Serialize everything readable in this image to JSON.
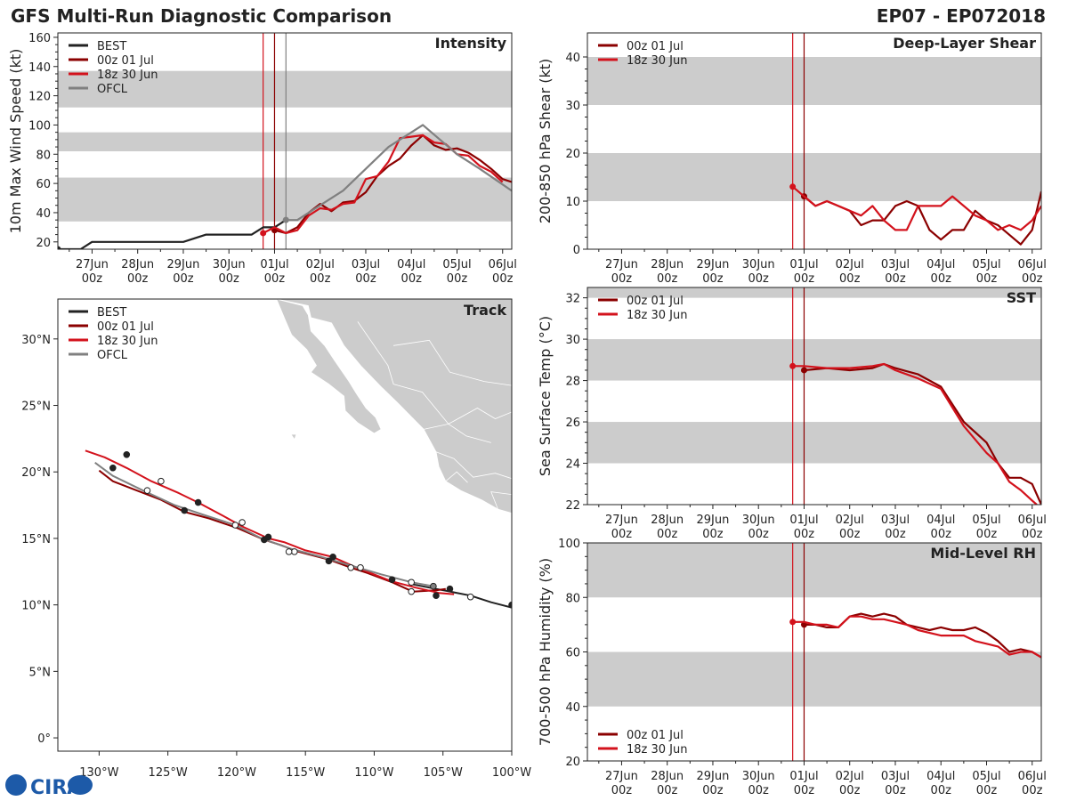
{
  "header": {
    "title": "GFS Multi-Run Diagnostic Comparison",
    "storm_id": "EP07 - EP072018"
  },
  "logo_text": "CIRA",
  "colors": {
    "best": "#222222",
    "run1": "#8b0000",
    "run2": "#d3121c",
    "ofcl": "#808080",
    "band": "#cccccc",
    "land": "#cccccc",
    "border": "#ffffff"
  },
  "legend": {
    "best": "BEST",
    "run1": "00z 01 Jul",
    "run2": "18z 30 Jun",
    "ofcl": "OFCL"
  },
  "time_axis": {
    "date_labels": [
      "27Jun",
      "28Jun",
      "29Jun",
      "30Jun",
      "01Jul",
      "02Jul",
      "03Jul",
      "04Jul",
      "05Jul",
      "06Jul"
    ],
    "hour_label": "00z",
    "days": [
      0,
      1,
      2,
      3,
      4,
      5,
      6,
      7,
      8,
      9
    ],
    "xlim": [
      -0.75,
      9.2
    ]
  },
  "chart_data": [
    {
      "id": "intensity",
      "type": "line",
      "title": "Intensity",
      "ylabel": "10m Max Wind Speed (kt)",
      "ylim": [
        15,
        163
      ],
      "yticks": [
        20,
        40,
        60,
        80,
        100,
        120,
        140,
        160
      ],
      "bands": [
        [
          34,
          64
        ],
        [
          82,
          95
        ],
        [
          112,
          137
        ]
      ],
      "vlines": [
        {
          "series": "run2",
          "day": 3.75
        },
        {
          "series": "run1",
          "day": 4.0
        },
        {
          "series": "ofcl",
          "day": 4.25
        }
      ],
      "series": [
        {
          "key": "best",
          "name": "BEST",
          "t": [
            -0.75,
            -0.25,
            0,
            0.5,
            1,
            1.5,
            2,
            2.5,
            3,
            3.25,
            3.5,
            3.75,
            4.0,
            4.25
          ],
          "values": [
            15,
            15,
            20,
            20,
            20,
            20,
            20,
            25,
            25,
            25,
            25,
            30,
            30,
            35
          ]
        },
        {
          "key": "run1",
          "name": "00z 01 Jul",
          "t": [
            4.0,
            4.25,
            4.5,
            4.75,
            5.0,
            5.25,
            5.5,
            5.75,
            6.0,
            6.25,
            6.5,
            6.75,
            7.0,
            7.25,
            7.5,
            7.75,
            8.0,
            8.25,
            8.5,
            8.75,
            9.0,
            9.2
          ],
          "values": [
            28,
            26,
            30,
            40,
            46,
            41,
            47,
            48,
            54,
            65,
            72,
            77,
            86,
            93,
            86,
            83,
            84,
            81,
            76,
            70,
            63,
            61
          ]
        },
        {
          "key": "run2",
          "name": "18z 30 Jun",
          "t": [
            3.75,
            4.0,
            4.25,
            4.5,
            4.75,
            5.0,
            5.25,
            5.5,
            5.75,
            6.0,
            6.25,
            6.5,
            6.75,
            7.0,
            7.25,
            7.5,
            7.75,
            8.0,
            8.25,
            8.5,
            8.75,
            9.0
          ],
          "values": [
            26,
            30,
            26,
            28,
            38,
            43,
            42,
            46,
            47,
            63,
            65,
            75,
            91,
            92,
            93,
            88,
            87,
            80,
            79,
            72,
            68,
            61
          ]
        },
        {
          "key": "ofcl",
          "name": "OFCL",
          "t": [
            4.25,
            4.5,
            5.0,
            5.5,
            6.0,
            6.5,
            7.25,
            8.0,
            8.5,
            9.2
          ],
          "values": [
            35,
            35,
            45,
            55,
            70,
            85,
            100,
            80,
            70,
            55
          ]
        }
      ]
    },
    {
      "id": "shear",
      "type": "line",
      "title": "Deep-Layer Shear",
      "ylabel": "200-850 hPa Shear (kt)",
      "ylim": [
        0,
        45
      ],
      "yticks": [
        0,
        10,
        20,
        30,
        40
      ],
      "bands": [
        [
          10,
          20
        ],
        [
          30,
          40
        ]
      ],
      "vlines": [
        {
          "series": "run2",
          "day": 3.75
        },
        {
          "series": "run1",
          "day": 4.0
        }
      ],
      "series": [
        {
          "key": "run1",
          "name": "00z 01 Jul",
          "t": [
            4.0,
            4.25,
            4.5,
            4.75,
            5.0,
            5.25,
            5.5,
            5.75,
            6.0,
            6.25,
            6.5,
            6.75,
            7.0,
            7.25,
            7.5,
            7.75,
            8.0,
            8.25,
            8.5,
            8.75,
            9.0,
            9.2
          ],
          "values": [
            11,
            9,
            10,
            9,
            8,
            5,
            6,
            6,
            9,
            10,
            9,
            4,
            2,
            4,
            4,
            8,
            6,
            5,
            3,
            1,
            4,
            12
          ]
        },
        {
          "key": "run2",
          "name": "18z 30 Jun",
          "t": [
            3.75,
            4.0,
            4.25,
            4.5,
            4.75,
            5.0,
            5.25,
            5.5,
            5.75,
            6.0,
            6.25,
            6.5,
            6.75,
            7.0,
            7.25,
            7.5,
            7.75,
            8.0,
            8.25,
            8.5,
            8.75,
            9.0,
            9.2
          ],
          "values": [
            13,
            11,
            9,
            10,
            9,
            8,
            7,
            9,
            6,
            4,
            4,
            9,
            9,
            9,
            11,
            9,
            7,
            6,
            4,
            5,
            4,
            6,
            9
          ]
        }
      ]
    },
    {
      "id": "sst",
      "type": "line",
      "title": "SST",
      "ylabel": "Sea Surface Temp (°C)",
      "ylim": [
        22,
        32.5
      ],
      "yticks": [
        22,
        24,
        26,
        28,
        30,
        32
      ],
      "bands": [
        [
          24,
          26
        ],
        [
          28,
          30
        ],
        [
          32,
          33
        ]
      ],
      "vlines": [
        {
          "series": "run2",
          "day": 3.75
        },
        {
          "series": "run1",
          "day": 4.0
        }
      ],
      "series": [
        {
          "key": "run1",
          "name": "00z 01 Jul",
          "t": [
            4.0,
            4.5,
            5.0,
            5.5,
            5.75,
            6.0,
            6.5,
            7.0,
            7.5,
            8.0,
            8.25,
            8.5,
            8.75,
            9.0,
            9.2
          ],
          "values": [
            28.5,
            28.6,
            28.5,
            28.6,
            28.8,
            28.6,
            28.3,
            27.7,
            26.0,
            25.0,
            24.0,
            23.3,
            23.3,
            23.0,
            22.0
          ]
        },
        {
          "key": "run2",
          "name": "18z 30 Jun",
          "t": [
            3.75,
            4.0,
            4.5,
            5.0,
            5.5,
            5.75,
            6.0,
            6.5,
            7.0,
            7.5,
            8.0,
            8.25,
            8.5,
            8.75,
            9.0,
            9.1
          ],
          "values": [
            28.7,
            28.7,
            28.6,
            28.6,
            28.7,
            28.8,
            28.5,
            28.1,
            27.6,
            25.8,
            24.5,
            24.0,
            23.1,
            22.7,
            22.2,
            22.0
          ]
        }
      ]
    },
    {
      "id": "rh",
      "type": "line",
      "title": "Mid-Level RH",
      "ylabel": "700-500 hPa Humidity (%)",
      "ylim": [
        20,
        100
      ],
      "yticks": [
        20,
        40,
        60,
        80,
        100
      ],
      "bands": [
        [
          40,
          60
        ],
        [
          80,
          100
        ]
      ],
      "vlines": [
        {
          "series": "run2",
          "day": 3.75
        },
        {
          "series": "run1",
          "day": 4.0
        }
      ],
      "series": [
        {
          "key": "run1",
          "name": "00z 01 Jul",
          "t": [
            4.0,
            4.25,
            4.5,
            4.75,
            5.0,
            5.25,
            5.5,
            5.75,
            6.0,
            6.25,
            6.5,
            6.75,
            7.0,
            7.25,
            7.5,
            7.75,
            8.0,
            8.25,
            8.5,
            8.75,
            9.0,
            9.2
          ],
          "values": [
            70,
            70,
            69,
            69,
            73,
            74,
            73,
            74,
            73,
            70,
            69,
            68,
            69,
            68,
            68,
            69,
            67,
            64,
            60,
            61,
            60,
            58
          ]
        },
        {
          "key": "run2",
          "name": "18z 30 Jun",
          "t": [
            3.75,
            4.0,
            4.25,
            4.5,
            4.75,
            5.0,
            5.25,
            5.5,
            5.75,
            6.0,
            6.25,
            6.5,
            6.75,
            7.0,
            7.25,
            7.5,
            7.75,
            8.0,
            8.25,
            8.5,
            8.75,
            9.0,
            9.2
          ],
          "values": [
            71,
            71,
            70,
            70,
            69,
            73,
            73,
            72,
            72,
            71,
            70,
            68,
            67,
            66,
            66,
            66,
            64,
            63,
            62,
            59,
            60,
            60,
            58
          ]
        }
      ]
    },
    {
      "id": "track",
      "type": "line",
      "title": "Track",
      "xlim": [
        -133,
        -100
      ],
      "ylim": [
        -1,
        33
      ],
      "xticks": [
        -130,
        -125,
        -120,
        -115,
        -110,
        -105,
        -100
      ],
      "xtick_labels": [
        "130°W",
        "125°W",
        "120°W",
        "115°W",
        "110°W",
        "105°W",
        "100°W"
      ],
      "yticks": [
        0,
        5,
        10,
        15,
        20,
        25,
        30
      ],
      "ytick_labels": [
        "0°",
        "5°N",
        "10°N",
        "15°N",
        "20°N",
        "25°N",
        "30°N"
      ],
      "series": [
        {
          "key": "best",
          "name": "BEST",
          "lon": [
            -100.0,
            -101.5,
            -103,
            -104.5,
            -106,
            -107.5
          ],
          "lat": [
            9.8,
            10.2,
            10.7,
            11.0,
            11.3,
            11.6
          ]
        },
        {
          "key": "run1",
          "name": "00z 01 Jul",
          "lon": [
            -104.8,
            -105.5,
            -107.2,
            -108.7,
            -110.5,
            -111.7,
            -113.3,
            -115.5,
            -116.8,
            -118.0,
            -120.0,
            -122.0,
            -123.8,
            -125.5,
            -127.5,
            -129.0,
            -130.0
          ],
          "lat": [
            11.2,
            11.1,
            11.0,
            11.7,
            12.4,
            12.8,
            13.4,
            14.0,
            14.5,
            14.9,
            15.8,
            16.5,
            17.0,
            17.9,
            18.7,
            19.3,
            20.1
          ]
        },
        {
          "key": "run2",
          "name": "18z 30 Jun",
          "lon": [
            -104.2,
            -105.3,
            -107.0,
            -108.8,
            -110.5,
            -111.5,
            -113.0,
            -115.0,
            -116.5,
            -117.7,
            -119.6,
            -121.0,
            -122.8,
            -124.2,
            -126.2,
            -128.0,
            -129.6,
            -131.0
          ],
          "lat": [
            10.8,
            10.9,
            11.3,
            11.8,
            12.5,
            12.9,
            13.6,
            14.1,
            14.7,
            15.0,
            15.9,
            16.7,
            17.7,
            18.4,
            19.3,
            20.3,
            21.1,
            21.6
          ]
        },
        {
          "key": "ofcl",
          "name": "OFCL",
          "lon": [
            -105.7,
            -107.3,
            -109.5,
            -111.5,
            -113.8,
            -116.0,
            -118.2,
            -120.1,
            -122.5,
            -124.5,
            -126.8,
            -129.0,
            -130.3
          ],
          "lat": [
            11.4,
            11.7,
            12.3,
            12.9,
            13.6,
            14.2,
            15.0,
            16.0,
            16.8,
            17.5,
            18.6,
            19.7,
            20.7
          ]
        }
      ],
      "markers": [
        {
          "series": "best",
          "lon": [
            -100.0,
            -103,
            -104.5
          ],
          "lat": [
            10.0,
            10.6,
            11.2
          ],
          "fill": [
            "filled",
            "open",
            "filled"
          ]
        },
        {
          "series": "run1",
          "lon": [
            -105.5,
            -108.7,
            -111.7,
            -113.3,
            -118.0,
            -123.8,
            -129.0
          ],
          "lat": [
            10.7,
            11.9,
            12.8,
            13.3,
            14.9,
            17.1,
            20.3
          ],
          "fill": [
            "filled",
            "filled",
            "open",
            "filled",
            "filled",
            "filled",
            "filled"
          ]
        },
        {
          "series": "run2",
          "lon": [
            -107.3,
            -111.0,
            -113.0,
            -117.7,
            -119.6,
            -122.8,
            -125.5,
            -128.0
          ],
          "lat": [
            11.0,
            12.8,
            13.6,
            15.1,
            16.2,
            17.7,
            19.3,
            21.3
          ],
          "fill": [
            "open",
            "open",
            "filled",
            "filled",
            "open",
            "filled",
            "open",
            "filled"
          ]
        },
        {
          "series": "ofcl",
          "lon": [
            -105.7,
            -107.3,
            -115.8,
            -116.2,
            -120.1,
            -126.5
          ],
          "lat": [
            11.4,
            11.7,
            14.0,
            14.0,
            16.0,
            18.6
          ],
          "fill": [
            "filled",
            "open",
            "open",
            "open",
            "open",
            "open"
          ]
        }
      ]
    }
  ]
}
